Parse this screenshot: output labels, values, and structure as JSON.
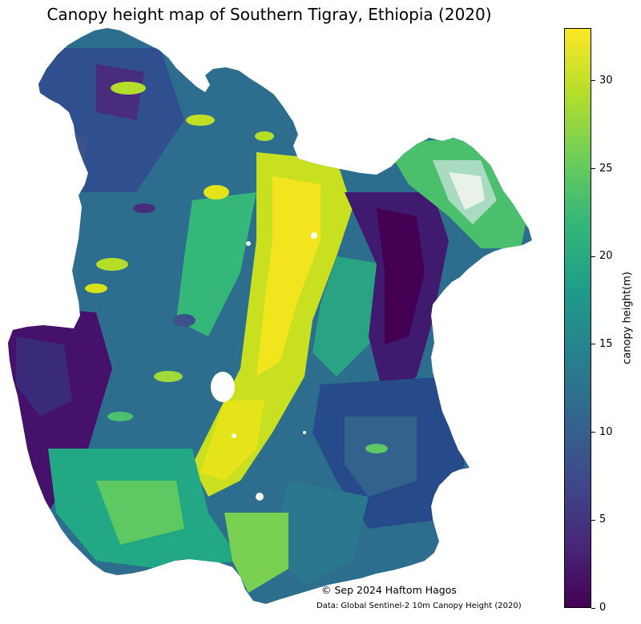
{
  "map": {
    "title": "Canopy height map of Southern Tigray, Ethiopia (2020)",
    "credit": "© Sep 2024 Haftom Hagos",
    "source": "Data: Global Sentinel-2 10m Canopy Height (2020)"
  },
  "colorbar": {
    "label": "canopy height(m)",
    "range": [
      0,
      33
    ],
    "colormap": "viridis",
    "ticks": [
      {
        "value": 0,
        "label": "0"
      },
      {
        "value": 5,
        "label": "5"
      },
      {
        "value": 10,
        "label": "10"
      },
      {
        "value": 15,
        "label": "15"
      },
      {
        "value": 20,
        "label": "20"
      },
      {
        "value": 25,
        "label": "25"
      },
      {
        "value": 30,
        "label": "30"
      }
    ],
    "stops": [
      "#440154",
      "#482878",
      "#3e4a89",
      "#31688e",
      "#26828e",
      "#1f9e89",
      "#35b779",
      "#6ece58",
      "#b5de2b",
      "#fde725"
    ]
  }
}
